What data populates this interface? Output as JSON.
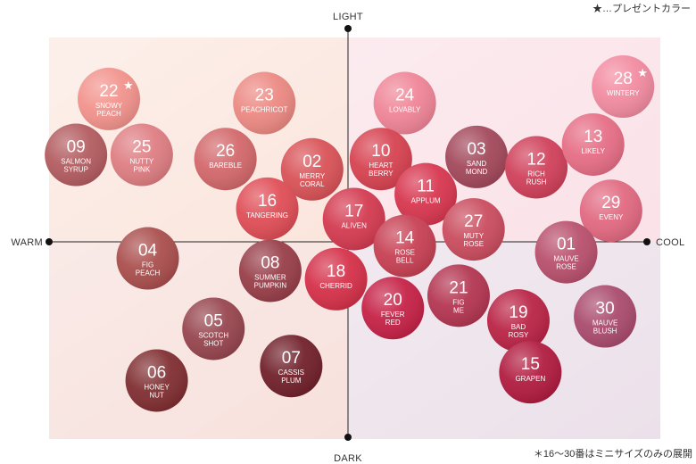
{
  "notes": {
    "present": "★…プレゼントカラー",
    "mini": "＊16〜30番はミニサイズのみの展開"
  },
  "chart_data": {
    "type": "scatter",
    "title": "",
    "axes": {
      "top": "LIGHT",
      "bottom": "DARK",
      "left": "WARM",
      "right": "COOL"
    },
    "xlim": [
      -1,
      1
    ],
    "ylim": [
      -1,
      1
    ],
    "grid": false,
    "quadrant_colors": {
      "warm_light": "#f9dcd0",
      "cool_light": "#f9dde4",
      "warm_dark": "#f6dcd7",
      "cool_dark": "#ece1ea"
    },
    "points": [
      {
        "number": "22",
        "name": [
          "SNOWY",
          "PEACH"
        ],
        "x": -0.8,
        "y": 0.69,
        "color": "#f2928c",
        "star": true
      },
      {
        "number": "23",
        "name": [
          "PEACHRICOT"
        ],
        "x": -0.28,
        "y": 0.67,
        "color": "#ec8882",
        "star": false
      },
      {
        "number": "24",
        "name": [
          "LOVABLY"
        ],
        "x": 0.19,
        "y": 0.67,
        "color": "#ef8496",
        "star": false
      },
      {
        "number": "28",
        "name": [
          "WINTERY"
        ],
        "x": 0.92,
        "y": 0.75,
        "color": "#f28aa0",
        "star": true
      },
      {
        "number": "09",
        "name": [
          "SALMON",
          "SYRUP"
        ],
        "x": -0.91,
        "y": 0.42,
        "color": "#b25b5f",
        "star": false
      },
      {
        "number": "25",
        "name": [
          "NUTTY",
          "PINK"
        ],
        "x": -0.69,
        "y": 0.42,
        "color": "#de7d82",
        "star": false
      },
      {
        "number": "26",
        "name": [
          "BAREBLE"
        ],
        "x": -0.41,
        "y": 0.4,
        "color": "#d2676a",
        "star": false
      },
      {
        "number": "02",
        "name": [
          "MERRY",
          "CORAL"
        ],
        "x": -0.12,
        "y": 0.35,
        "color": "#d85156",
        "star": false
      },
      {
        "number": "10",
        "name": [
          "HEART",
          "BERRY"
        ],
        "x": 0.11,
        "y": 0.4,
        "color": "#d6414f",
        "star": false
      },
      {
        "number": "03",
        "name": [
          "SAND",
          "MOND"
        ],
        "x": 0.43,
        "y": 0.41,
        "color": "#a2475a",
        "star": false
      },
      {
        "number": "12",
        "name": [
          "RICH",
          "RUSH"
        ],
        "x": 0.63,
        "y": 0.36,
        "color": "#cf3f59",
        "star": false
      },
      {
        "number": "13",
        "name": [
          "LIKELY"
        ],
        "x": 0.82,
        "y": 0.47,
        "color": "#e66d85",
        "star": false
      },
      {
        "number": "16",
        "name": [
          "TANGERING"
        ],
        "x": -0.27,
        "y": 0.16,
        "color": "#df4c55",
        "star": false
      },
      {
        "number": "11",
        "name": [
          "APPLUM"
        ],
        "x": 0.26,
        "y": 0.23,
        "color": "#d7354e",
        "star": false
      },
      {
        "number": "29",
        "name": [
          "EVENY"
        ],
        "x": 0.88,
        "y": 0.15,
        "color": "#e16880",
        "star": false
      },
      {
        "number": "17",
        "name": [
          "ALIVEN"
        ],
        "x": 0.02,
        "y": 0.11,
        "color": "#d3394f",
        "star": false
      },
      {
        "number": "27",
        "name": [
          "MUTY",
          "ROSE"
        ],
        "x": 0.42,
        "y": 0.06,
        "color": "#c94b5d",
        "star": false
      },
      {
        "number": "14",
        "name": [
          "ROSE",
          "BELL"
        ],
        "x": 0.19,
        "y": -0.02,
        "color": "#c63f52",
        "star": false
      },
      {
        "number": "01",
        "name": [
          "MAUVE",
          "ROSE"
        ],
        "x": 0.73,
        "y": -0.05,
        "color": "#b84f6c",
        "star": false
      },
      {
        "number": "04",
        "name": [
          "FIG",
          "PEACH"
        ],
        "x": -0.67,
        "y": -0.08,
        "color": "#a94d4c",
        "star": false
      },
      {
        "number": "08",
        "name": [
          "SUMMER",
          "PUMPKIN"
        ],
        "x": -0.26,
        "y": -0.14,
        "color": "#973d48",
        "star": false
      },
      {
        "number": "18",
        "name": [
          "CHERRID"
        ],
        "x": -0.04,
        "y": -0.18,
        "color": "#d42f48",
        "star": false
      },
      {
        "number": "21",
        "name": [
          "FIG",
          "ME"
        ],
        "x": 0.37,
        "y": -0.26,
        "color": "#b33450",
        "star": false
      },
      {
        "number": "20",
        "name": [
          "FEVER",
          "RED"
        ],
        "x": 0.15,
        "y": -0.32,
        "color": "#c52045",
        "star": false
      },
      {
        "number": "19",
        "name": [
          "BAD",
          "ROSY"
        ],
        "x": 0.57,
        "y": -0.38,
        "color": "#b92244",
        "star": false
      },
      {
        "number": "30",
        "name": [
          "MAUVE",
          "BLUSH"
        ],
        "x": 0.86,
        "y": -0.36,
        "color": "#a94a6c",
        "star": false
      },
      {
        "number": "05",
        "name": [
          "SCOTCH",
          "SHOT"
        ],
        "x": -0.45,
        "y": -0.42,
        "color": "#96444d",
        "star": false
      },
      {
        "number": "06",
        "name": [
          "HONEY",
          "NUT"
        ],
        "x": -0.64,
        "y": -0.67,
        "color": "#7f2d30",
        "star": false
      },
      {
        "number": "07",
        "name": [
          "CASSIS",
          "PLUM"
        ],
        "x": -0.19,
        "y": -0.6,
        "color": "#701f29",
        "star": false
      },
      {
        "number": "15",
        "name": [
          "GRAPEN"
        ],
        "x": 0.61,
        "y": -0.63,
        "color": "#b01a3e",
        "star": false
      }
    ]
  }
}
